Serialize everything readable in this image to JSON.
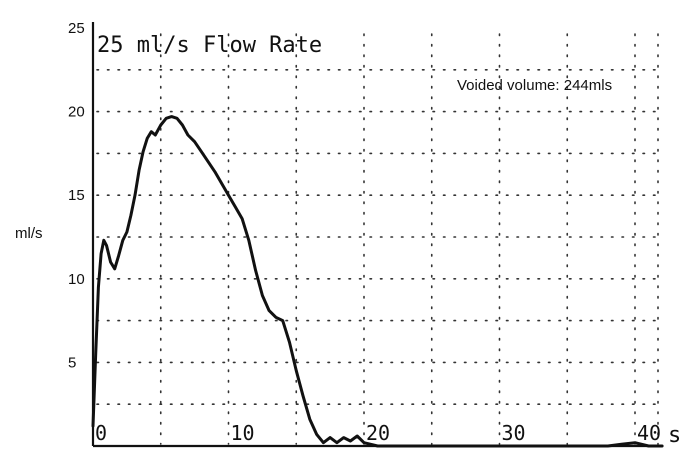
{
  "chart_data": {
    "type": "line",
    "title": "25 ml/s Flow Rate",
    "annotation": "Voided volume: 244mls",
    "ylabel": "ml/s",
    "xlabel": "s",
    "ylim": [
      0,
      25
    ],
    "xlim": [
      0,
      43
    ],
    "y_ticks": [
      "5",
      "10",
      "15",
      "20",
      "25"
    ],
    "x_ticks": [
      "0",
      "10",
      "20",
      "30",
      "40"
    ],
    "y_tick_values": [
      5,
      10,
      15,
      20,
      25
    ],
    "x_tick_values": [
      0,
      10,
      20,
      30,
      40
    ],
    "grid": true,
    "series": [
      {
        "x": [
          0,
          0.2,
          0.4,
          0.6,
          0.8,
          1.0,
          1.3,
          1.6,
          1.9,
          2.2,
          2.5,
          2.8,
          3.1,
          3.4,
          3.7,
          4.0,
          4.3,
          4.6,
          5.0,
          5.4,
          5.8,
          6.2,
          6.6,
          7.0,
          7.5,
          8.0,
          8.5,
          9.0,
          9.5,
          10.0,
          10.5,
          11.0,
          11.5,
          12.0,
          12.5,
          13.0,
          13.5,
          14.0,
          14.5,
          15.0,
          15.5,
          16.0,
          16.5,
          17.0,
          17.5,
          18.0,
          18.5,
          19.0,
          19.5,
          20.0,
          20.5,
          21.0,
          22.0,
          24.0,
          26.0,
          30.0,
          35.0,
          38.0,
          39.0,
          40.0,
          41.0,
          42.0
        ],
        "y": [
          1.2,
          5.5,
          9.5,
          11.5,
          12.3,
          12.0,
          11.0,
          10.6,
          11.4,
          12.3,
          12.8,
          13.8,
          15.0,
          16.5,
          17.6,
          18.4,
          18.8,
          18.6,
          19.2,
          19.6,
          19.7,
          19.6,
          19.2,
          18.6,
          18.2,
          17.6,
          17.0,
          16.4,
          15.7,
          15.0,
          14.3,
          13.6,
          12.3,
          10.5,
          9.0,
          8.1,
          7.7,
          7.5,
          6.2,
          4.5,
          3.0,
          1.6,
          0.7,
          0.2,
          0.5,
          0.2,
          0.5,
          0.3,
          0.6,
          0.2,
          0.1,
          0.0,
          0.0,
          0.0,
          0.0,
          0.0,
          0.0,
          0.0,
          0.1,
          0.2,
          0.0,
          0.0
        ]
      }
    ]
  }
}
